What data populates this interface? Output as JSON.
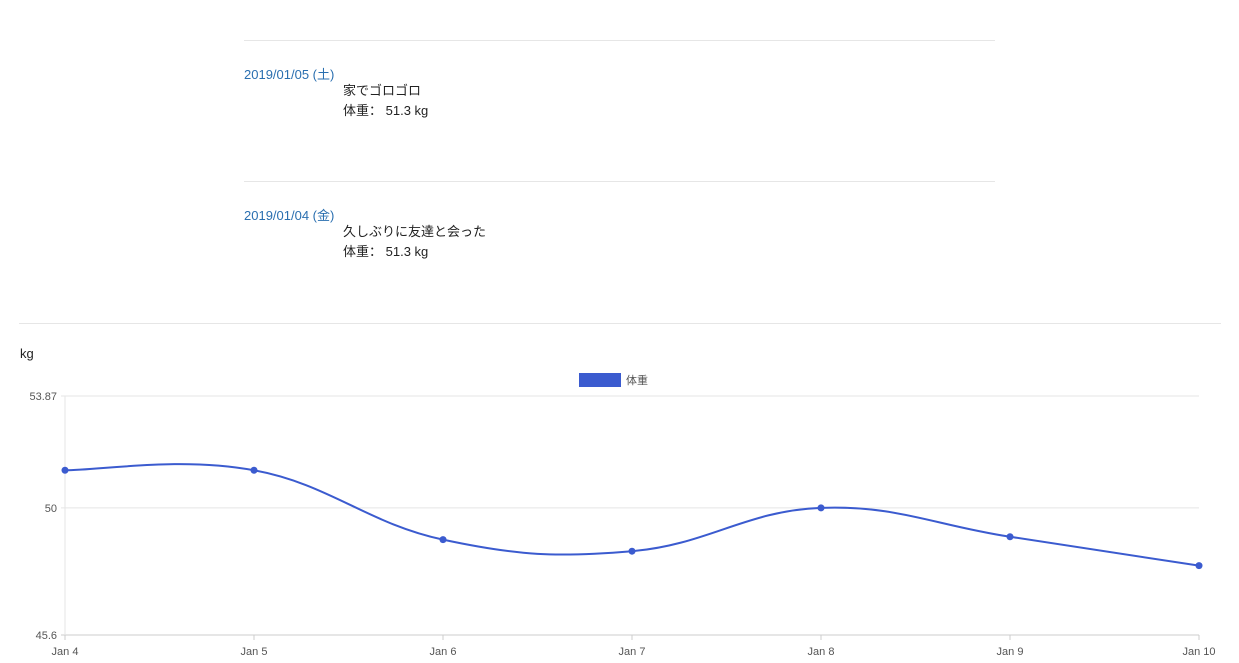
{
  "entries": [
    {
      "date": "2019/01/05 (土)",
      "note": "家でゴロゴロ",
      "weight_label": "体重：",
      "weight_value": "51.3 kg"
    },
    {
      "date": "2019/01/04 (金)",
      "note": "久しぶりに友達と会った",
      "weight_label": "体重：",
      "weight_value": "51.3 kg"
    }
  ],
  "chart_unit": "kg",
  "chart_data": {
    "type": "line",
    "categories": [
      "Jan 4",
      "Jan 5",
      "Jan 6",
      "Jan 7",
      "Jan 8",
      "Jan 9",
      "Jan 10"
    ],
    "series": [
      {
        "name": "体重",
        "values": [
          51.3,
          51.3,
          48.9,
          48.5,
          50.0,
          49.0,
          48.0
        ],
        "color": "#3b5bcf"
      }
    ],
    "ylabel": "kg",
    "ylim": [
      45.6,
      53.87
    ],
    "yticks": [
      "53.87",
      "50",
      "45.6"
    ],
    "smooth": true,
    "grid": true,
    "legend": "top-center"
  }
}
